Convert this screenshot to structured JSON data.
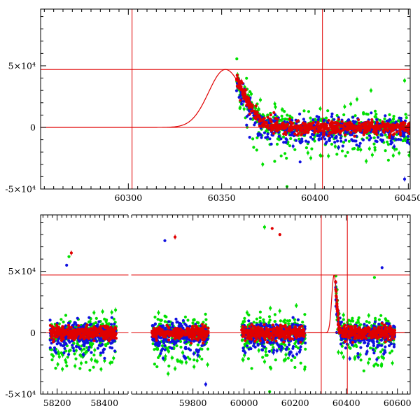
{
  "chart_data": [
    {
      "type": "scatter",
      "panel": "top",
      "xlim": [
        60253,
        60451
      ],
      "ylim": [
        -50000,
        96000
      ],
      "x_ticks": [
        60300,
        60350,
        60400,
        60450
      ],
      "y_ticks": [
        {
          "value": 50000,
          "label": "5×10⁴"
        },
        {
          "value": 0,
          "label": "0"
        },
        {
          "value": -50000,
          "label": "-5×10⁴"
        }
      ],
      "reference_lines": {
        "vertical": [
          60302,
          60404
        ],
        "horizontal": [
          0,
          47000
        ]
      },
      "model_curve": {
        "peak_x": 60352,
        "peak_y": 47000,
        "rise_width": 9,
        "decay_width": 9.5
      },
      "series_colors": {
        "green": "#00e000",
        "blue": "#1010e0",
        "red": "#e00000"
      },
      "observation_range": [
        60358,
        60451
      ],
      "sample_points": [
        {
          "band": "red",
          "x": 60360,
          "y": 22000
        },
        {
          "band": "green",
          "x": 60362,
          "y": 15000
        },
        {
          "band": "blue",
          "x": 60365,
          "y": -8000
        },
        {
          "band": "green",
          "x": 60372,
          "y": -30000
        },
        {
          "band": "red",
          "x": 60378,
          "y": 12000
        },
        {
          "band": "green",
          "x": 60385,
          "y": -48000
        },
        {
          "band": "blue",
          "x": 60392,
          "y": -28000
        },
        {
          "band": "green",
          "x": 60430,
          "y": 30000
        },
        {
          "band": "green",
          "x": 60448,
          "y": 38000
        },
        {
          "band": "blue",
          "x": 60448,
          "y": -42000
        }
      ]
    },
    {
      "type": "scatter",
      "panel": "bottom",
      "xlim": [
        58130,
        60650
      ],
      "axis_break": {
        "after": 58500,
        "resume": 59560,
        "gap_px_range": [
          183,
          188
        ]
      },
      "ylim": [
        -50000,
        96000
      ],
      "x_ticks": [
        58200,
        58400,
        59800,
        60000,
        60200,
        60400,
        60600
      ],
      "y_ticks": [
        {
          "value": 50000,
          "label": "5×10⁴"
        },
        {
          "value": 0,
          "label": "0"
        },
        {
          "value": -50000,
          "label": "-5×10⁴"
        }
      ],
      "reference_lines": {
        "vertical": [
          60302,
          60404
        ],
        "horizontal": [
          0,
          47000
        ]
      },
      "model_curve": {
        "peak_x": 60352,
        "peak_y": 47000,
        "rise_width": 9,
        "decay_width": 9.5
      },
      "series_colors": {
        "green": "#00e000",
        "blue": "#1010e0",
        "red": "#e00000"
      },
      "observation_ranges": [
        [
          58170,
          58450
        ],
        [
          59640,
          59860
        ],
        [
          59990,
          60240
        ],
        [
          60358,
          60590
        ]
      ],
      "sample_points": [
        {
          "band": "red",
          "x": 58260,
          "y": 65000
        },
        {
          "band": "green",
          "x": 58250,
          "y": 62000
        },
        {
          "band": "blue",
          "x": 58240,
          "y": 55000
        },
        {
          "band": "blue",
          "x": 59690,
          "y": 75000
        },
        {
          "band": "red",
          "x": 59730,
          "y": 78000
        },
        {
          "band": "red",
          "x": 60110,
          "y": 85000
        },
        {
          "band": "green",
          "x": 60080,
          "y": 86000
        },
        {
          "band": "red",
          "x": 60140,
          "y": 80000
        },
        {
          "band": "blue",
          "x": 60540,
          "y": 53000
        },
        {
          "band": "green",
          "x": 60510,
          "y": 45000
        },
        {
          "band": "green",
          "x": 60100,
          "y": -48000
        },
        {
          "band": "blue",
          "x": 59850,
          "y": -42000
        }
      ]
    }
  ]
}
